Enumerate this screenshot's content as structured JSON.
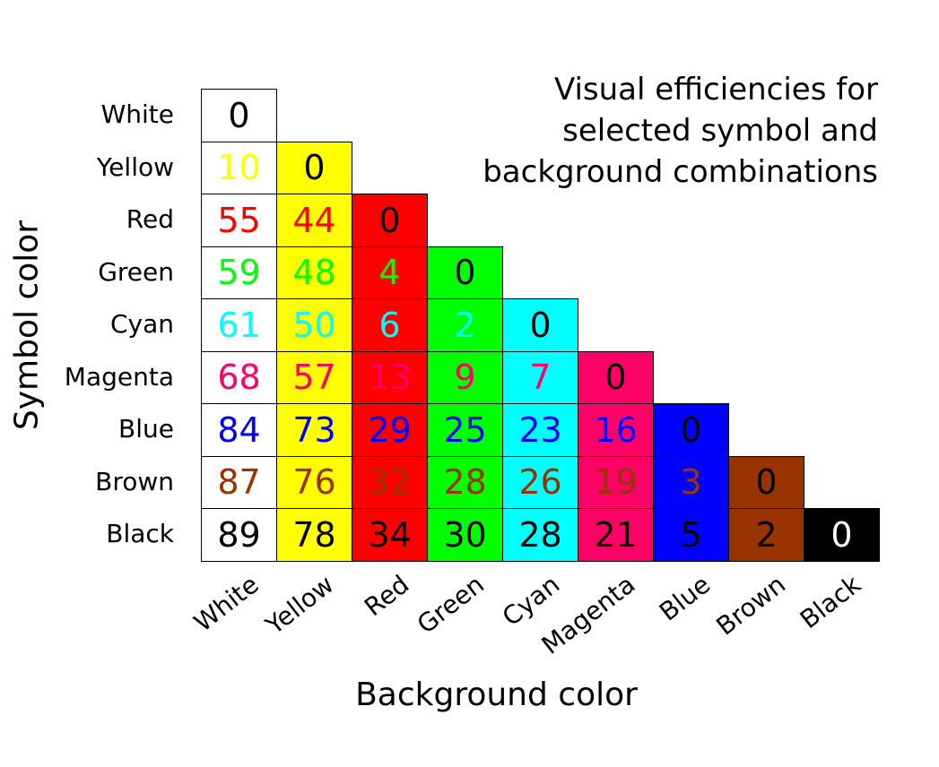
{
  "chart_data": {
    "type": "heatmap",
    "title": [
      "Visual efficiencies for",
      "selected symbol and",
      "background combinations"
    ],
    "xlabel": "Background color",
    "ylabel": "Symbol color",
    "columns": [
      "White",
      "Yellow",
      "Red",
      "Green",
      "Cyan",
      "Magenta",
      "Blue",
      "Brown",
      "Black"
    ],
    "rows": [
      "White",
      "Yellow",
      "Red",
      "Green",
      "Cyan",
      "Magenta",
      "Blue",
      "Brown",
      "Black"
    ],
    "values": [
      [
        0
      ],
      [
        10,
        0
      ],
      [
        55,
        44,
        0
      ],
      [
        59,
        48,
        4,
        0
      ],
      [
        61,
        50,
        6,
        2,
        0
      ],
      [
        68,
        57,
        13,
        9,
        7,
        0
      ],
      [
        84,
        73,
        29,
        25,
        23,
        16,
        0
      ],
      [
        87,
        76,
        32,
        28,
        26,
        19,
        3,
        0
      ],
      [
        89,
        78,
        34,
        30,
        28,
        21,
        5,
        2,
        0
      ]
    ],
    "colors": {
      "White": "#ffffff",
      "Yellow": "#ffff00",
      "Red": "#ff0000",
      "Green": "#00ff00",
      "Cyan": "#00ffff",
      "Magenta": "#ff0066",
      "Blue": "#0000ff",
      "Brown": "#993300",
      "Black": "#000000"
    },
    "diagonal_text_colors": {
      "Black": "#ffffff",
      "default": "#000000"
    },
    "layout": "lower-triangular"
  }
}
